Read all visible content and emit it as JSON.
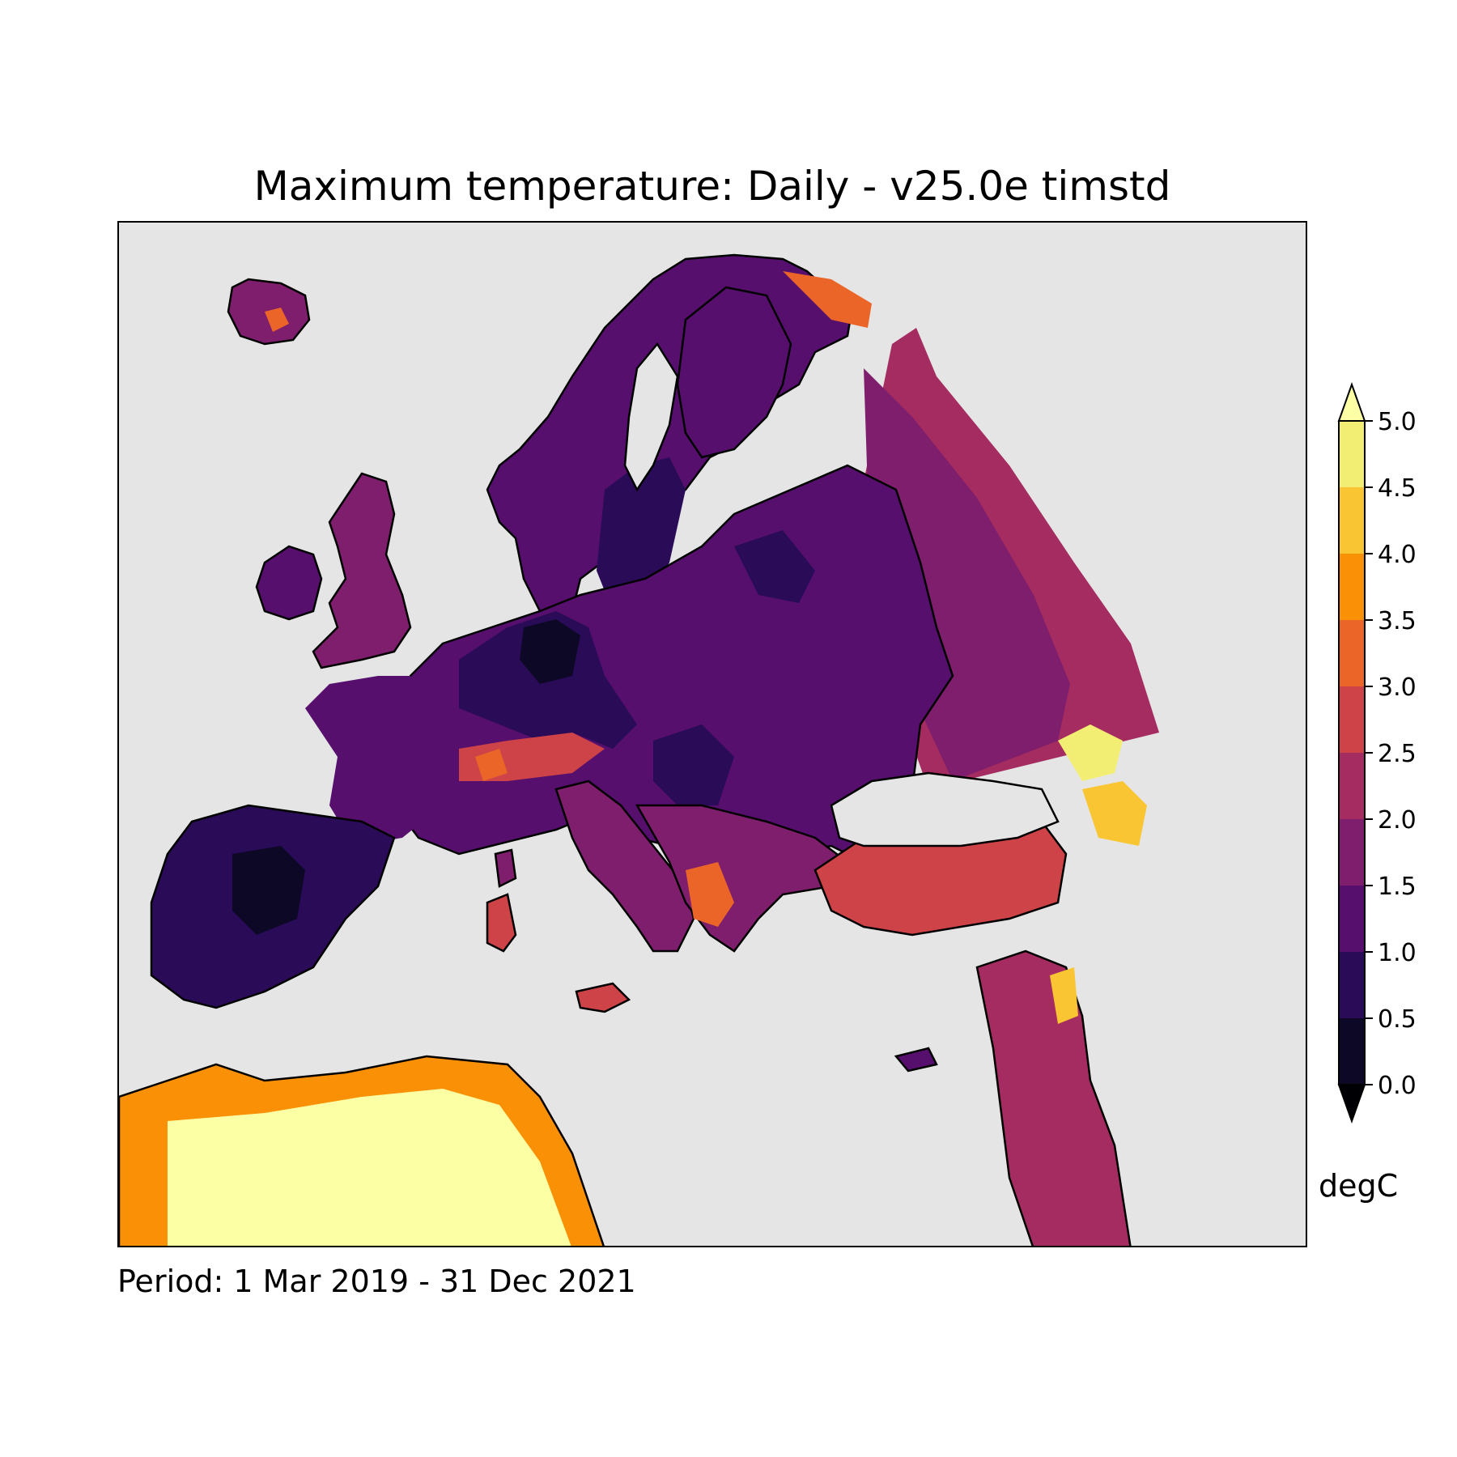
{
  "title": "Maximum temperature: Daily - v25.0e timstd",
  "period": "Period: 1 Mar 2019 - 31 Dec 2021",
  "colorbar": {
    "unit": "degC",
    "ticks": [
      "0.0",
      "0.5",
      "1.0",
      "1.5",
      "2.0",
      "2.5",
      "3.0",
      "3.5",
      "4.0",
      "4.5",
      "5.0"
    ],
    "levels": [
      0,
      0.5,
      1.0,
      1.5,
      2.0,
      2.5,
      3.0,
      3.5,
      4.0,
      4.5,
      5.0
    ],
    "colors": [
      "#0c0826",
      "#2a0b57",
      "#560f6d",
      "#7e1e6c",
      "#a52c60",
      "#cd4347",
      "#ec6528",
      "#fa9006",
      "#f9c532",
      "#f2ee73"
    ],
    "under_color": "#000004",
    "over_color": "#fcffa4",
    "extend": "both"
  },
  "map": {
    "background_color": "#e5e5e5",
    "colormap": "inferno",
    "coastline_color": "#000000"
  }
}
